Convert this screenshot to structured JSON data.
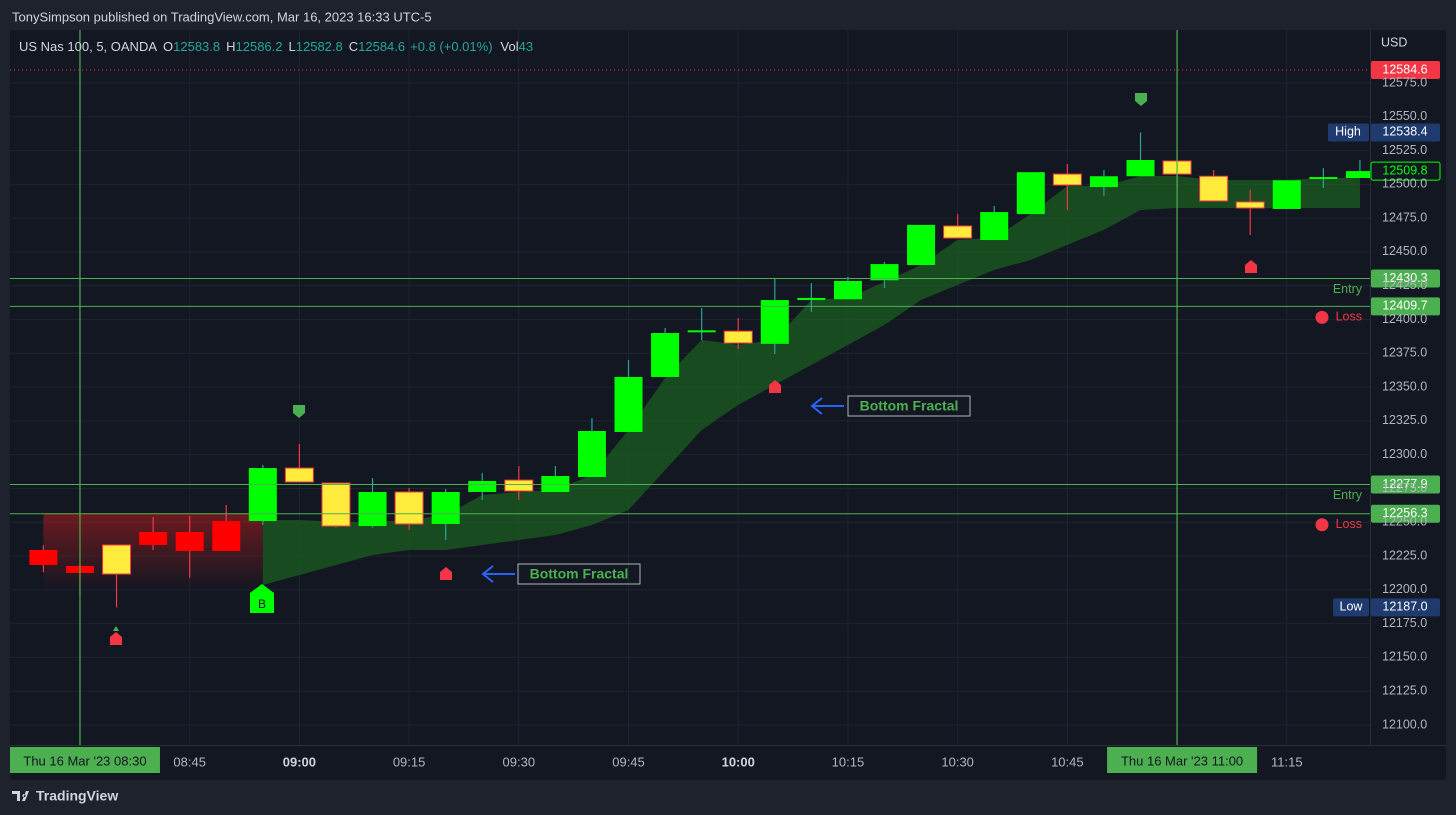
{
  "header": {
    "publisher": "TonySimpson published on TradingView.com, Mar 16, 2023 16:33 UTC-5",
    "footer": "TradingView"
  },
  "legend": {
    "symbol": "US Nas 100, 5, OANDA",
    "o_label": "O",
    "o": 12583.8,
    "h_label": "H",
    "h": 12586.2,
    "l_label": "L",
    "l": 12582.8,
    "c_label": "C",
    "c": 12584.6,
    "change": "+0.8 (+0.01%)",
    "vol_label": "Vol",
    "vol": 43
  },
  "chart_data": {
    "type": "candlestick",
    "currency": "USD",
    "categories": [
      null,
      "Thu 16 Mar '23  08:30",
      null,
      null,
      "08:45",
      null,
      null,
      "09:00",
      null,
      null,
      "09:15",
      null,
      null,
      "09:30",
      null,
      null,
      "09:45",
      null,
      null,
      "10:00",
      null,
      null,
      "10:15",
      null,
      null,
      "10:30",
      null,
      null,
      "10:45",
      null,
      null,
      "Thu 16 Mar '23  11:00",
      null,
      null,
      "11:15",
      null,
      null
    ],
    "open": [
      12229.5,
      12217.7,
      12211.7,
      12242.8,
      12242.8,
      12250.9,
      12250.9,
      12290.1,
      12279,
      12247.2,
      12272.4,
      12248.7,
      12272.4,
      12281.2,
      12272.4,
      12283.5,
      12316.8,
      12357.5,
      12390.6,
      12391.4,
      12382,
      12414.4,
      12415,
      12429,
      12440.3,
      12469.2,
      12458.8,
      12478,
      12507.6,
      12498,
      12506,
      12517.3,
      12506,
      12487,
      12481.8,
      12504.7,
      12504.7
    ],
    "high": [
      12233,
      12218.4,
      12233.2,
      12253.9,
      12254.6,
      12262.8,
      12292.4,
      12307.9,
      12279,
      12282.7,
      12275.3,
      12274.6,
      12286.4,
      12291.6,
      12291.6,
      12327.1,
      12370,
      12393.7,
      12408.5,
      12401,
      12430,
      12427,
      12431.5,
      12442.6,
      12470,
      12478,
      12484,
      12509,
      12515,
      12510.6,
      12538.4,
      12525.4,
      12510.6,
      12496,
      12503,
      12512,
      12518
    ],
    "low": [
      12213,
      12196.2,
      12187,
      12229.5,
      12208.8,
      12228.7,
      12248,
      12279.8,
      12246,
      12246,
      12244.3,
      12236.9,
      12266.5,
      12266.5,
      12272.4,
      12283.5,
      12316.8,
      12357.5,
      12384.8,
      12378.2,
      12374.5,
      12405.6,
      12415,
      12423.3,
      12440.3,
      12460,
      12458.8,
      12478,
      12481,
      12491.4,
      12506,
      12497.3,
      12487.7,
      12462.5,
      12481.8,
      12497.3,
      12504.7
    ],
    "close": [
      12218.4,
      12212.5,
      12233.2,
      12233.2,
      12228.7,
      12228.7,
      12290.1,
      12279.8,
      12247.2,
      12272.4,
      12248.7,
      12272.4,
      12280.5,
      12273.1,
      12284.2,
      12317.5,
      12357.5,
      12390,
      12392,
      12382.6,
      12414.4,
      12416,
      12428.5,
      12441,
      12470,
      12460.3,
      12479.5,
      12509,
      12499.5,
      12506,
      12518,
      12507.6,
      12487.7,
      12482.5,
      12503,
      12505.4,
      12509.8
    ],
    "candle_colors": [
      "#ff0000",
      "#ff0000",
      "#ffeb3b",
      "#ff0000",
      "#ff0000",
      "#ff0000",
      "#00ff00",
      "#ffeb3b",
      "#ffeb3b",
      "#00ff00",
      "#ffeb3b",
      "#00ff00",
      "#00ff00",
      "#ffeb3b",
      "#00ff00",
      "#00ff00",
      "#00ff00",
      "#00ff00",
      "#00ff00",
      "#ffeb3b",
      "#00ff00",
      "#00ff00",
      "#00ff00",
      "#00ff00",
      "#00ff00",
      "#ffeb3b",
      "#00ff00",
      "#00ff00",
      "#ffeb3b",
      "#00ff00",
      "#00ff00",
      "#ffeb3b",
      "#ffeb3b",
      "#ffeb3b",
      "#00ff00",
      "#00ff00",
      "#00ff00"
    ],
    "cloud_upper": [
      null,
      null,
      null,
      null,
      null,
      null,
      12251.7,
      12251.7,
      12250.2,
      12250.2,
      12251.7,
      12255.4,
      12270.2,
      12272.4,
      12273.9,
      12285,
      12318.3,
      12356.7,
      12384.9,
      12381.2,
      12384.9,
      12414.5,
      12416,
      12427.8,
      12440.4,
      12458.9,
      12460.3,
      12478.1,
      12498.8,
      12498.8,
      12506.2,
      12506.2,
      12503.3,
      12503.3,
      12503.3,
      12504.7,
      12504.7
    ],
    "cloud_lower": [
      null,
      null,
      null,
      null,
      null,
      null,
      12203.6,
      12211,
      12218.4,
      12225.8,
      12229.5,
      12229.5,
      12233.2,
      12236.9,
      12240.6,
      12248,
      12259.1,
      12288.7,
      12318.3,
      12336.8,
      12351.6,
      12366.4,
      12381.2,
      12396,
      12414.5,
      12425.6,
      12436.7,
      12444.1,
      12455.2,
      12466.3,
      12481,
      12482.5,
      12482.5,
      12482.5,
      12482.5,
      12482.5,
      12482.5
    ],
    "cloud_color": "#1b5e20",
    "bear_cloud_upper": [
      12256.8,
      12256.8,
      12256.8,
      12256.8,
      12256.8,
      12256.8,
      12256.8,
      null,
      null,
      null,
      null,
      null,
      null,
      null,
      null,
      null,
      null,
      null,
      null,
      null,
      null,
      null,
      null,
      null,
      null,
      null,
      null,
      null,
      null,
      null,
      null,
      null,
      null,
      null,
      null,
      null,
      null
    ],
    "bear_cloud_lower": [
      12200,
      12200,
      12200,
      12200,
      12200,
      12200,
      12200,
      null,
      null,
      null,
      null,
      null,
      null,
      null,
      null,
      null,
      null,
      null,
      null,
      null,
      null,
      null,
      null,
      null,
      null,
      null,
      null,
      null,
      null,
      null,
      null,
      null,
      null,
      null,
      null,
      null,
      null
    ],
    "bear_cloud_color": "#b71c1c",
    "ylim": [
      12085.2,
      12614.2
    ],
    "yticks": [
      {
        "value": 12100,
        "label": "12100.0"
      },
      {
        "value": 12125,
        "label": "12125.0"
      },
      {
        "value": 12150,
        "label": "12150.0"
      },
      {
        "value": 12175,
        "label": "12175.0"
      },
      {
        "value": 12200,
        "label": "12200.0"
      },
      {
        "value": 12225,
        "label": "12225.0"
      },
      {
        "value": 12250,
        "label": "12250.0"
      },
      {
        "value": 12275,
        "label": "12275.0"
      },
      {
        "value": 12300,
        "label": "12300.0"
      },
      {
        "value": 12325,
        "label": "12325.0"
      },
      {
        "value": 12350,
        "label": "12350.0"
      },
      {
        "value": 12375,
        "label": "12375.0"
      },
      {
        "value": 12400,
        "label": "12400.0"
      },
      {
        "value": 12425,
        "label": "12425.0"
      },
      {
        "value": 12450,
        "label": "12450.0"
      },
      {
        "value": 12475,
        "label": "12475.0"
      },
      {
        "value": 12500,
        "label": "12500.0"
      },
      {
        "value": 12525,
        "label": "12525.0"
      },
      {
        "value": 12550,
        "label": "12550.0"
      },
      {
        "value": 12575,
        "label": "12575.0"
      }
    ],
    "grid": true,
    "last_price": 12584.6,
    "high_label": "High",
    "high_price": 12538.4,
    "low_label": "Low",
    "low_price": {
      "value": 12187,
      "label": "12187.0"
    },
    "entry_label": "Entry",
    "loss_label": "Loss",
    "entry_levels": [
      12430.3,
      12277.9
    ],
    "loss_levels": [
      12409.7,
      12256.3
    ],
    "level_color": "#4caf50",
    "buy_label": "B",
    "annotations": [
      "Bottom Fractal",
      "Bottom Fractal"
    ]
  }
}
